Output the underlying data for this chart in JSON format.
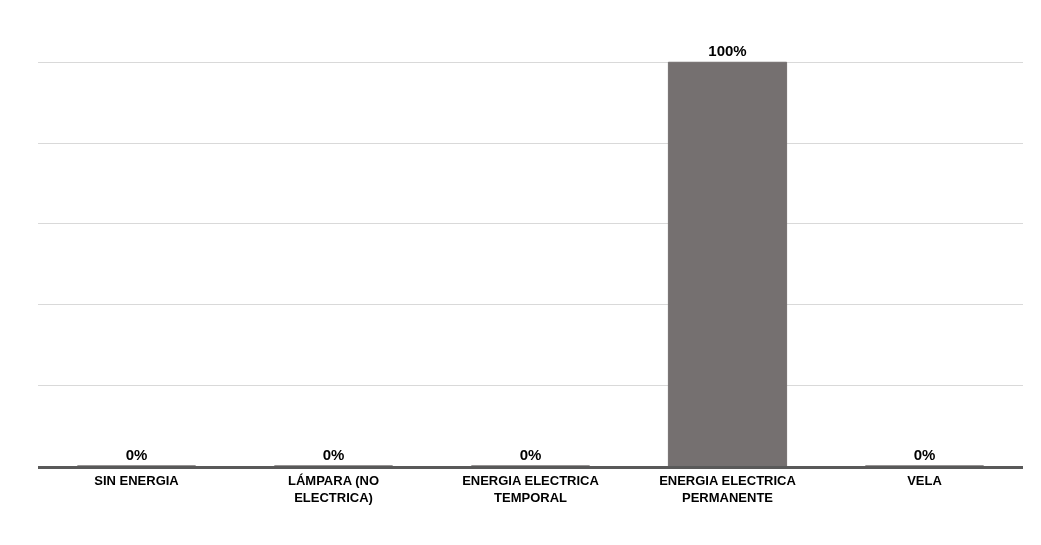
{
  "chart_data": {
    "type": "bar",
    "categories": [
      "SIN ENERGIA",
      "LÁMPARA (NO ELECTRICA)",
      "ENERGIA ELECTRICA TEMPORAL",
      "ENERGIA ELECTRICA PERMANENTE",
      "VELA"
    ],
    "values": [
      0,
      0,
      0,
      100,
      0
    ],
    "value_labels": [
      "0%",
      "0%",
      "0%",
      "100%",
      "0%"
    ],
    "color": "#757070",
    "grid": "y",
    "tick_labels": "x"
  }
}
